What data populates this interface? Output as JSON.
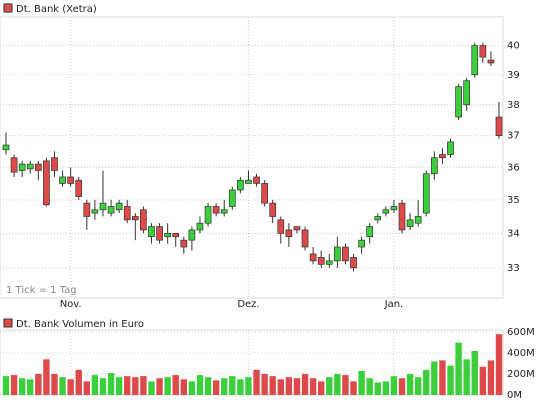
{
  "chart_data": [
    {
      "type": "candlestick",
      "legend": "Dt. Bank (Xetra)",
      "annotation": "1 Tick = 1 Tag",
      "categories": [
        null,
        null,
        null,
        null,
        null,
        null,
        null,
        null,
        "Nov.",
        null,
        null,
        null,
        null,
        null,
        null,
        null,
        null,
        null,
        null,
        null,
        null,
        null,
        null,
        null,
        null,
        null,
        null,
        null,
        null,
        null,
        "Dez.",
        null,
        null,
        null,
        null,
        null,
        null,
        null,
        null,
        null,
        null,
        null,
        null,
        null,
        null,
        null,
        null,
        null,
        "Jan.",
        null,
        null,
        null,
        null,
        null,
        null,
        null,
        null,
        null,
        null,
        null,
        null,
        null
      ],
      "open": [
        36.55,
        36.3,
        35.9,
        35.95,
        36.1,
        36.2,
        36.3,
        35.5,
        35.7,
        35.6,
        34.9,
        34.6,
        34.7,
        34.6,
        34.7,
        34.8,
        34.5,
        34.7,
        33.9,
        34.2,
        33.9,
        34.0,
        33.8,
        33.8,
        34.1,
        34.3,
        34.8,
        34.6,
        34.8,
        35.3,
        35.5,
        35.7,
        35.5,
        34.9,
        34.4,
        34.1,
        34.2,
        34.1,
        33.4,
        33.3,
        33.1,
        33.2,
        33.6,
        33.3,
        33.6,
        33.9,
        34.4,
        34.6,
        34.7,
        34.9,
        34.2,
        34.3,
        34.6,
        35.8,
        36.4,
        36.4,
        37.6,
        38.0,
        39.0,
        40.0,
        39.5,
        37.6
      ],
      "close": [
        36.7,
        35.85,
        36.1,
        36.1,
        35.9,
        34.85,
        35.9,
        35.7,
        35.5,
        35.1,
        34.5,
        34.7,
        34.9,
        34.8,
        34.9,
        34.4,
        34.4,
        34.1,
        34.2,
        33.8,
        34.0,
        33.9,
        33.6,
        34.1,
        34.3,
        34.8,
        34.6,
        34.7,
        35.3,
        35.6,
        35.6,
        35.5,
        34.9,
        34.5,
        34.0,
        33.9,
        34.1,
        33.6,
        33.2,
        33.1,
        33.2,
        33.6,
        33.2,
        33.0,
        33.8,
        34.2,
        34.5,
        34.7,
        34.8,
        34.1,
        34.4,
        34.5,
        35.8,
        36.3,
        36.3,
        36.8,
        38.6,
        38.8,
        40.0,
        39.6,
        39.4,
        37.0
      ],
      "high": [
        37.1,
        36.4,
        36.2,
        36.2,
        36.2,
        36.3,
        36.5,
        35.9,
        36.0,
        35.7,
        35.0,
        35.0,
        35.9,
        35.0,
        35.0,
        35.0,
        34.6,
        34.8,
        34.3,
        34.3,
        34.3,
        34.0,
        33.9,
        34.2,
        34.5,
        34.9,
        34.9,
        35.0,
        35.4,
        35.7,
        35.9,
        35.8,
        35.6,
        35.0,
        34.5,
        34.3,
        34.2,
        34.2,
        33.6,
        33.5,
        33.4,
        33.9,
        33.7,
        33.4,
        33.9,
        34.3,
        34.6,
        34.8,
        35.0,
        35.0,
        34.6,
        35.0,
        35.9,
        36.5,
        36.6,
        36.9,
        38.7,
        38.9,
        40.1,
        40.1,
        39.8,
        38.1
      ],
      "low": [
        36.4,
        35.7,
        35.7,
        35.8,
        35.6,
        34.8,
        35.7,
        35.4,
        35.4,
        35.0,
        34.1,
        34.4,
        34.5,
        34.5,
        34.6,
        34.3,
        33.8,
        34.0,
        33.7,
        33.7,
        33.7,
        33.6,
        33.4,
        33.5,
        34.0,
        34.2,
        34.5,
        34.5,
        34.7,
        35.2,
        35.5,
        35.4,
        34.8,
        34.3,
        33.7,
        33.6,
        34.0,
        33.5,
        33.1,
        33.0,
        33.0,
        33.0,
        33.1,
        32.9,
        33.4,
        33.7,
        34.3,
        34.5,
        34.6,
        34.0,
        34.1,
        34.2,
        34.5,
        35.6,
        36.1,
        36.3,
        37.5,
        37.8,
        38.9,
        39.4,
        39.3,
        36.9
      ],
      "up_color": "#3ccf3c",
      "down_color": "#dd4a4a",
      "log_scale": true,
      "grid": true,
      "ylim": [
        32.15,
        41
      ],
      "yticks": [
        33,
        34,
        35,
        36,
        37,
        38,
        39,
        40
      ]
    },
    {
      "type": "bar",
      "legend": "Dt. Bank Volumen in Euro",
      "values": [
        180,
        190,
        160,
        150,
        200,
        340,
        200,
        170,
        150,
        240,
        130,
        190,
        160,
        210,
        170,
        180,
        170,
        180,
        130,
        160,
        170,
        190,
        150,
        130,
        190,
        170,
        140,
        160,
        180,
        150,
        170,
        240,
        200,
        180,
        150,
        170,
        160,
        200,
        160,
        130,
        170,
        200,
        190,
        130,
        230,
        160,
        120,
        130,
        180,
        160,
        200,
        170,
        240,
        320,
        330,
        280,
        500,
        340,
        420,
        270,
        330,
        580
      ],
      "grid": true,
      "ylim": [
        0,
        620
      ],
      "yticks": [
        {
          "value": 0,
          "label": "0M"
        },
        {
          "value": 200,
          "label": "200M"
        },
        {
          "value": 400,
          "label": "400M"
        },
        {
          "value": 600,
          "label": "600M"
        }
      ]
    }
  ]
}
